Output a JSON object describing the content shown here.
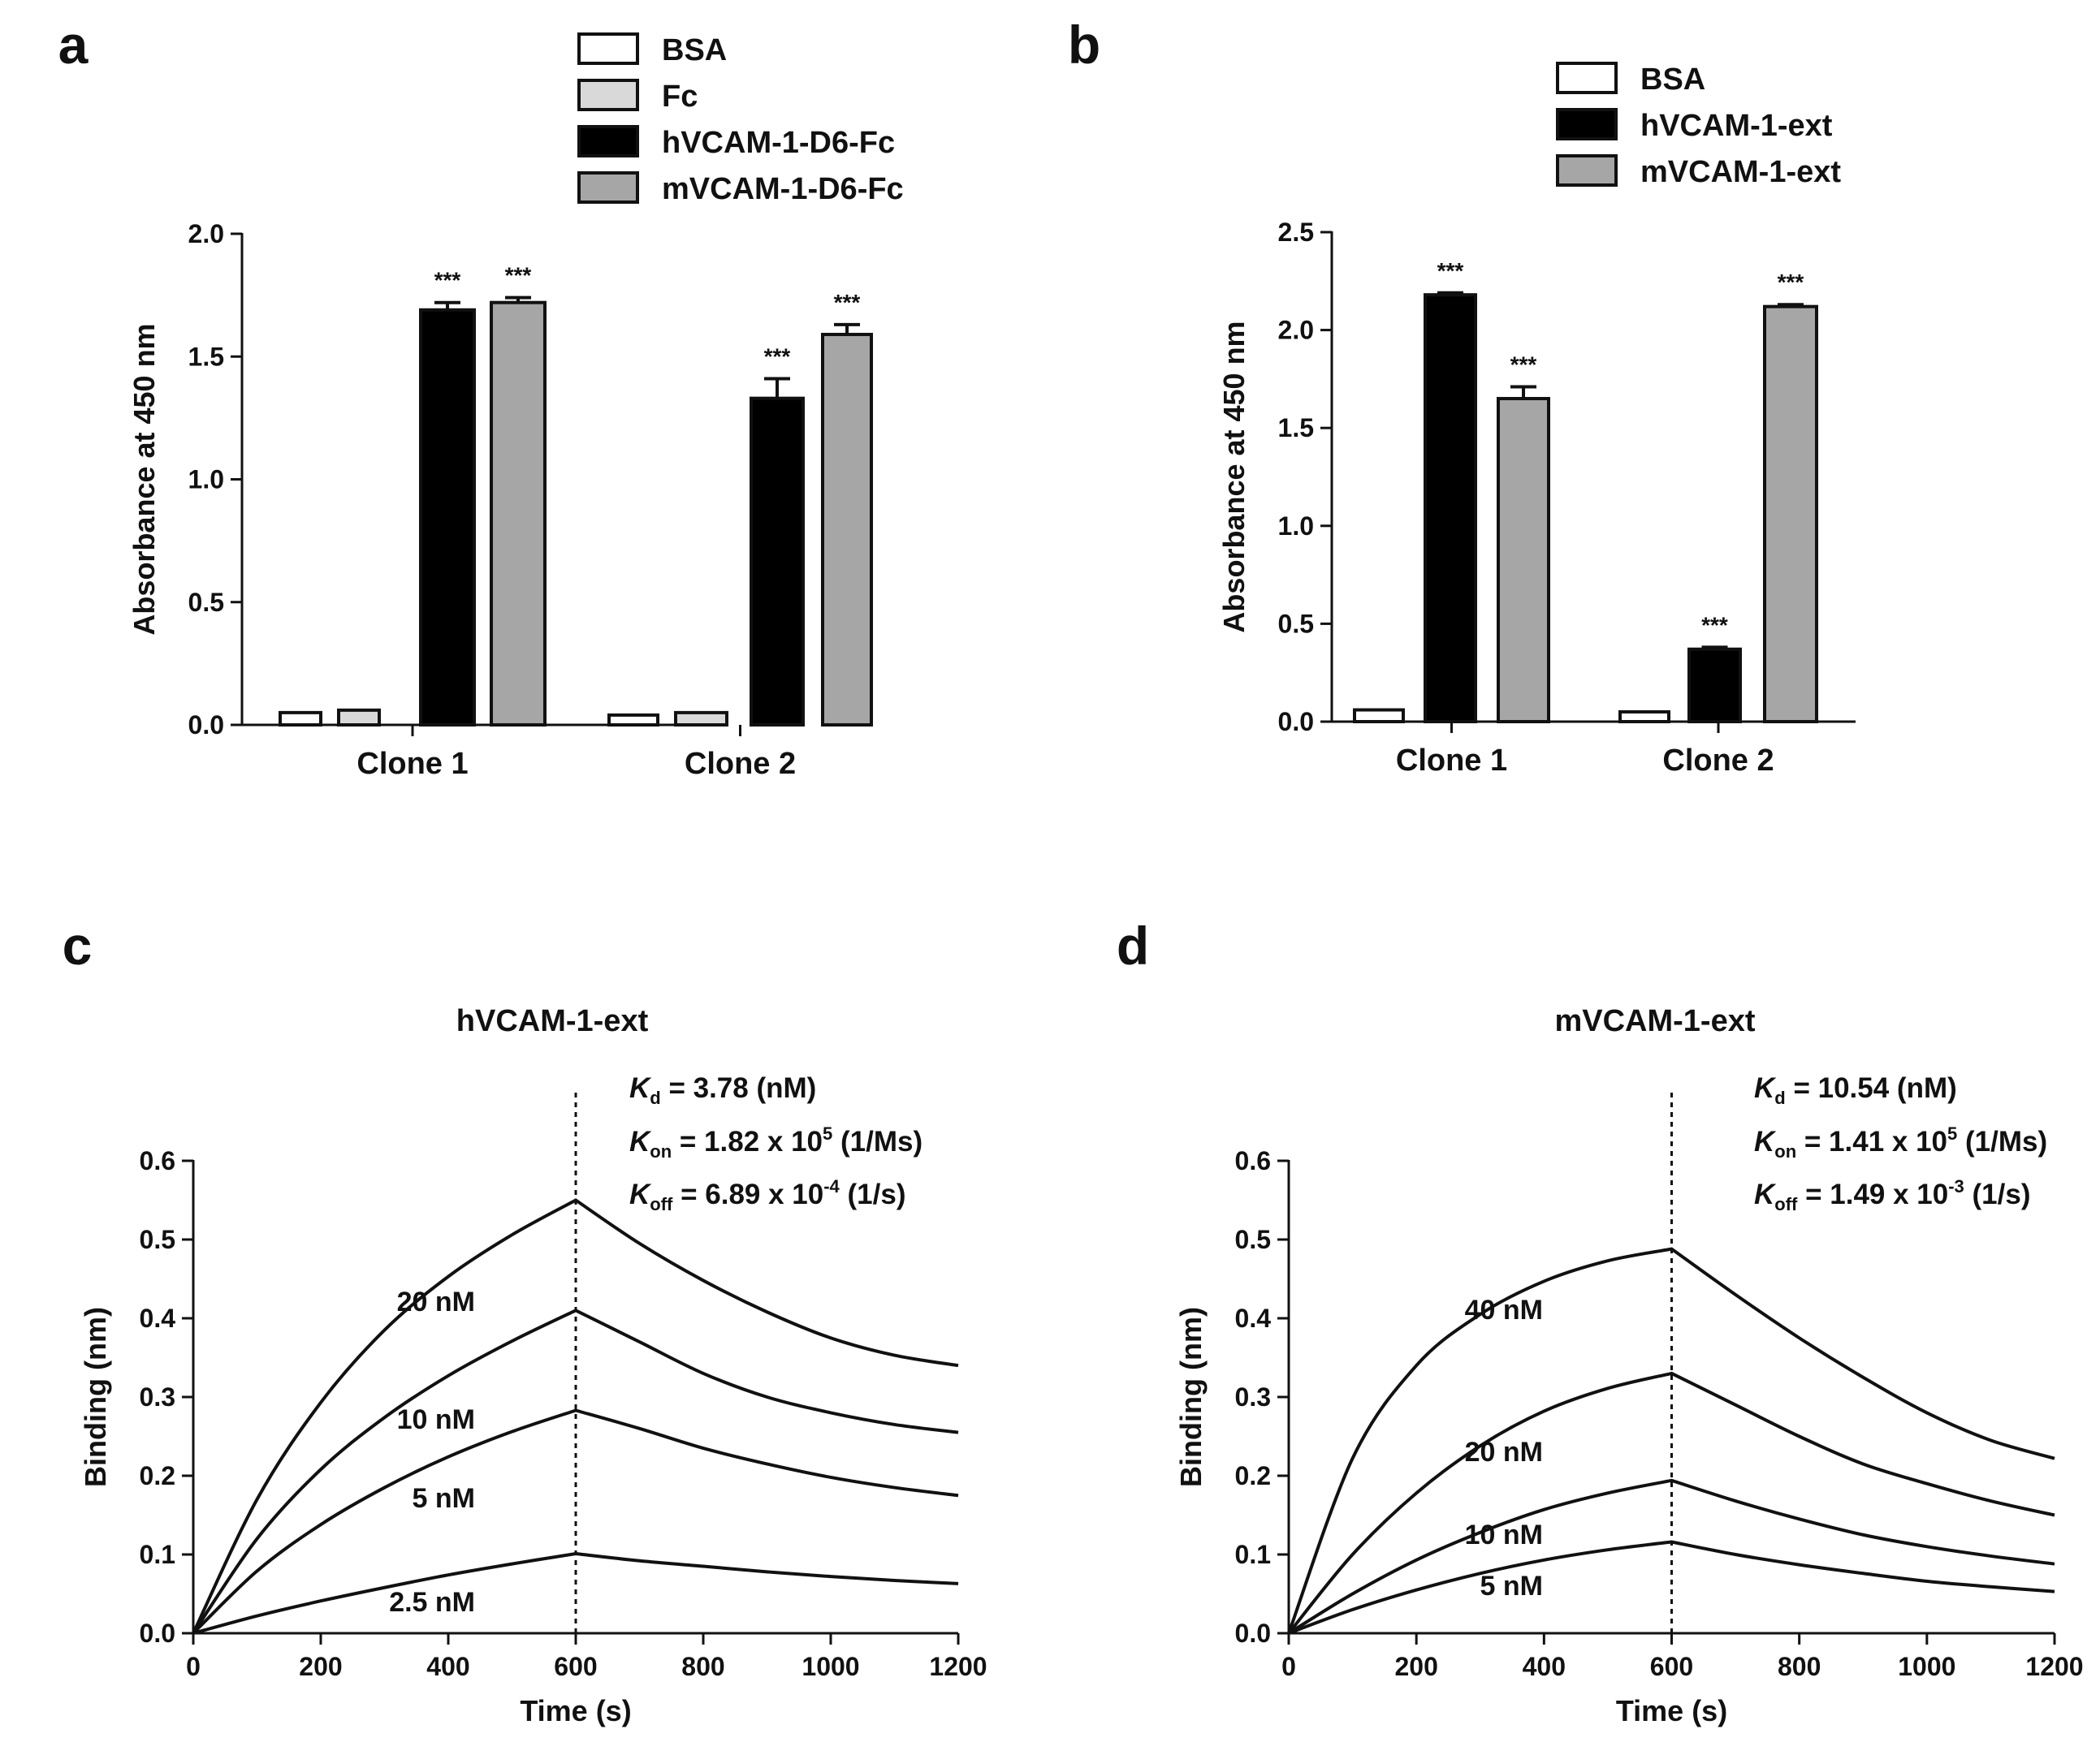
{
  "chart_data": [
    {
      "panel": "a",
      "type": "bar",
      "ylabel": "Absorbance at 450 nm",
      "ylim": [
        0,
        2.0
      ],
      "yticks": [
        "0.0",
        "0.5",
        "1.0",
        "1.5",
        "2.0"
      ],
      "categories": [
        "Clone 1",
        "Clone 2"
      ],
      "legend_position": "top-right",
      "series": [
        {
          "name": "BSA",
          "color": "#ffffff",
          "values": [
            0.05,
            0.04
          ],
          "errors": [
            0,
            0
          ],
          "sig": [
            "",
            ""
          ]
        },
        {
          "name": "Fc",
          "color": "#d9d9d9",
          "values": [
            0.06,
            0.05
          ],
          "errors": [
            0,
            0
          ],
          "sig": [
            "",
            ""
          ]
        },
        {
          "name": "hVCAM-1-D6-Fc",
          "color": "#000000",
          "values": [
            1.69,
            1.33
          ],
          "errors": [
            0.03,
            0.08
          ],
          "sig": [
            "***",
            "***"
          ]
        },
        {
          "name": "mVCAM-1-D6-Fc",
          "color": "#a6a6a6",
          "values": [
            1.72,
            1.59
          ],
          "errors": [
            0.02,
            0.04
          ],
          "sig": [
            "***",
            "***"
          ]
        }
      ]
    },
    {
      "panel": "b",
      "type": "bar",
      "ylabel": "Absorbance at 450 nm",
      "ylim": [
        0,
        2.5
      ],
      "yticks": [
        "0.0",
        "0.5",
        "1.0",
        "1.5",
        "2.0",
        "2.5"
      ],
      "categories": [
        "Clone 1",
        "Clone 2"
      ],
      "legend_position": "top-right",
      "series": [
        {
          "name": "BSA",
          "color": "#ffffff",
          "values": [
            0.06,
            0.05
          ],
          "errors": [
            0,
            0
          ],
          "sig": [
            "",
            ""
          ]
        },
        {
          "name": "hVCAM-1-ext",
          "color": "#000000",
          "values": [
            2.18,
            0.37
          ],
          "errors": [
            0.01,
            0.01
          ],
          "sig": [
            "***",
            "***"
          ]
        },
        {
          "name": "mVCAM-1-ext",
          "color": "#a6a6a6",
          "values": [
            1.65,
            2.12
          ],
          "errors": [
            0.06,
            0.01
          ],
          "sig": [
            "***",
            "***"
          ]
        }
      ]
    },
    {
      "panel": "c",
      "type": "line",
      "title": "hVCAM-1-ext",
      "xlabel": "Time (s)",
      "ylabel": "Binding (nm)",
      "xlim": [
        0,
        1200
      ],
      "ylim": [
        0,
        0.6
      ],
      "xticks": [
        "0",
        "200",
        "400",
        "600",
        "800",
        "1000",
        "1200"
      ],
      "yticks": [
        "0.0",
        "0.1",
        "0.2",
        "0.3",
        "0.4",
        "0.5",
        "0.6"
      ],
      "dissociation_start": 600,
      "series": [
        {
          "name": "20 nM",
          "points": [
            [
              0,
              0
            ],
            [
              100,
              0.17
            ],
            [
              200,
              0.293
            ],
            [
              300,
              0.385
            ],
            [
              400,
              0.453
            ],
            [
              500,
              0.506
            ],
            [
              600,
              0.55
            ],
            [
              700,
              0.495
            ],
            [
              800,
              0.448
            ],
            [
              900,
              0.408
            ],
            [
              1000,
              0.375
            ],
            [
              1100,
              0.353
            ],
            [
              1200,
              0.34
            ]
          ]
        },
        {
          "name": "10 nM",
          "points": [
            [
              0,
              0
            ],
            [
              100,
              0.12
            ],
            [
              200,
              0.208
            ],
            [
              300,
              0.274
            ],
            [
              400,
              0.327
            ],
            [
              500,
              0.371
            ],
            [
              600,
              0.41
            ],
            [
              700,
              0.37
            ],
            [
              800,
              0.33
            ],
            [
              900,
              0.3
            ],
            [
              1000,
              0.28
            ],
            [
              1100,
              0.265
            ],
            [
              1200,
              0.255
            ]
          ]
        },
        {
          "name": "5 nM",
          "points": [
            [
              0,
              0
            ],
            [
              100,
              0.079
            ],
            [
              200,
              0.138
            ],
            [
              300,
              0.185
            ],
            [
              400,
              0.224
            ],
            [
              500,
              0.256
            ],
            [
              600,
              0.283
            ],
            [
              700,
              0.26
            ],
            [
              800,
              0.235
            ],
            [
              900,
              0.215
            ],
            [
              1000,
              0.198
            ],
            [
              1100,
              0.185
            ],
            [
              1200,
              0.175
            ]
          ]
        },
        {
          "name": "2.5 nM",
          "points": [
            [
              0,
              0
            ],
            [
              100,
              0.022
            ],
            [
              200,
              0.041
            ],
            [
              300,
              0.058
            ],
            [
              400,
              0.074
            ],
            [
              500,
              0.088
            ],
            [
              600,
              0.101
            ],
            [
              700,
              0.092
            ],
            [
              800,
              0.085
            ],
            [
              900,
              0.078
            ],
            [
              1000,
              0.072
            ],
            [
              1100,
              0.067
            ],
            [
              1200,
              0.063
            ]
          ]
        }
      ],
      "kinetics": [
        {
          "symbol": "K",
          "sub": "d",
          "text": " = 3.78  (nM)",
          "sup": "",
          "tail": ""
        },
        {
          "symbol": "K",
          "sub": "on",
          "text": " = 1.82  x  10",
          "sup": "5",
          "tail": "  (1/Ms)"
        },
        {
          "symbol": "K",
          "sub": "off",
          "text": " = 6.89  x  10",
          "sup": "-4",
          "tail": "  (1/s)"
        }
      ]
    },
    {
      "panel": "d",
      "type": "line",
      "title": "mVCAM-1-ext",
      "xlabel": "Time (s)",
      "ylabel": "Binding (nm)",
      "xlim": [
        0,
        1200
      ],
      "ylim": [
        0,
        0.6
      ],
      "xticks": [
        "0",
        "200",
        "400",
        "600",
        "800",
        "1000",
        "1200"
      ],
      "yticks": [
        "0.0",
        "0.1",
        "0.2",
        "0.3",
        "0.4",
        "0.5",
        "0.6"
      ],
      "dissociation_start": 600,
      "series": [
        {
          "name": "40 nM",
          "points": [
            [
              0,
              0
            ],
            [
              100,
              0.222
            ],
            [
              200,
              0.34
            ],
            [
              300,
              0.405
            ],
            [
              400,
              0.447
            ],
            [
              500,
              0.473
            ],
            [
              600,
              0.488
            ],
            [
              700,
              0.43
            ],
            [
              800,
              0.375
            ],
            [
              900,
              0.325
            ],
            [
              1000,
              0.28
            ],
            [
              1100,
              0.245
            ],
            [
              1200,
              0.222
            ]
          ]
        },
        {
          "name": "20 nM",
          "points": [
            [
              0,
              0
            ],
            [
              100,
              0.1
            ],
            [
              200,
              0.178
            ],
            [
              300,
              0.238
            ],
            [
              400,
              0.282
            ],
            [
              500,
              0.311
            ],
            [
              600,
              0.33
            ],
            [
              700,
              0.29
            ],
            [
              800,
              0.25
            ],
            [
              900,
              0.215
            ],
            [
              1000,
              0.19
            ],
            [
              1100,
              0.168
            ],
            [
              1200,
              0.15
            ]
          ]
        },
        {
          "name": "10 nM",
          "points": [
            [
              0,
              0
            ],
            [
              100,
              0.05
            ],
            [
              200,
              0.093
            ],
            [
              300,
              0.128
            ],
            [
              400,
              0.157
            ],
            [
              500,
              0.178
            ],
            [
              600,
              0.194
            ],
            [
              700,
              0.168
            ],
            [
              800,
              0.145
            ],
            [
              900,
              0.125
            ],
            [
              1000,
              0.11
            ],
            [
              1100,
              0.098
            ],
            [
              1200,
              0.088
            ]
          ]
        },
        {
          "name": "5 nM",
          "points": [
            [
              0,
              0
            ],
            [
              100,
              0.03
            ],
            [
              200,
              0.055
            ],
            [
              300,
              0.076
            ],
            [
              400,
              0.093
            ],
            [
              500,
              0.106
            ],
            [
              600,
              0.116
            ],
            [
              700,
              0.1
            ],
            [
              800,
              0.087
            ],
            [
              900,
              0.076
            ],
            [
              1000,
              0.066
            ],
            [
              1100,
              0.059
            ],
            [
              1200,
              0.053
            ]
          ]
        }
      ],
      "kinetics": [
        {
          "symbol": "K",
          "sub": "d",
          "text": " = 10.54  (nM)",
          "sup": "",
          "tail": ""
        },
        {
          "symbol": "K",
          "sub": "on",
          "text": " = 1.41  x  10",
          "sup": "5",
          "tail": "  (1/Ms)"
        },
        {
          "symbol": "K",
          "sub": "off",
          "text": " = 1.49  x  10",
          "sup": "-3",
          "tail": "  (1/s)"
        }
      ]
    }
  ]
}
